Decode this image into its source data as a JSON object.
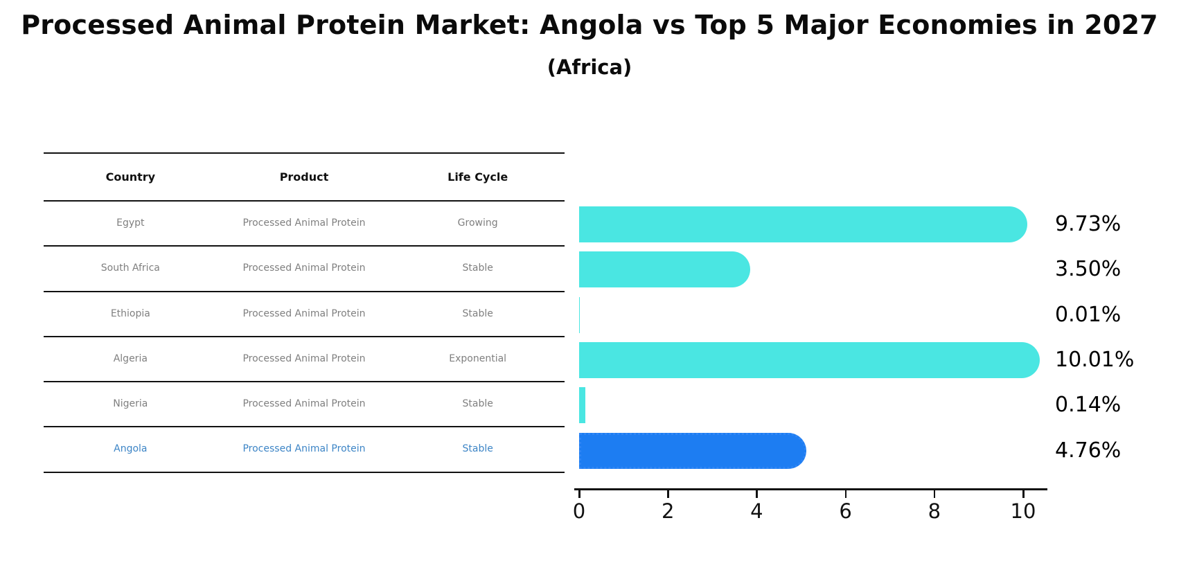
{
  "title": {
    "text": "Processed Animal Protein Market: Angola vs Top 5 Major Economies in 2027",
    "subtitle": "(Africa)"
  },
  "table": {
    "columns": [
      "Country",
      "Product",
      "Life Cycle"
    ],
    "rows": [
      {
        "country": "Egypt",
        "product": "Processed Animal Protein",
        "life_cycle": "Growing"
      },
      {
        "country": "South Africa",
        "product": "Processed Animal Protein",
        "life_cycle": "Stable"
      },
      {
        "country": "Ethiopia",
        "product": "Processed Animal Protein",
        "life_cycle": "Stable"
      },
      {
        "country": "Algeria",
        "product": "Processed Animal Protein",
        "life_cycle": "Exponential"
      },
      {
        "country": "Nigeria",
        "product": "Processed Animal Protein",
        "life_cycle": "Stable"
      },
      {
        "country": "Angola",
        "product": "Processed Animal Protein",
        "life_cycle": "Stable"
      }
    ]
  },
  "chart_data": {
    "type": "bar",
    "orientation": "horizontal",
    "title": "Processed Animal Protein Market: Angola vs Top 5 Major Economies in 2027 (Africa)",
    "categories": [
      "Egypt",
      "South Africa",
      "Ethiopia",
      "Algeria",
      "Nigeria",
      "Angola"
    ],
    "values": [
      9.73,
      3.5,
      0.01,
      10.01,
      0.14,
      4.76
    ],
    "labels": [
      "9.73%",
      "3.50%",
      "0.01%",
      "10.01%",
      "0.14%",
      "4.76%"
    ],
    "x_ticks": [
      0,
      2,
      4,
      6,
      8,
      10
    ],
    "x_tick_labels": [
      "0",
      "2",
      "4",
      "6",
      "8",
      "10"
    ],
    "xlim": [
      0,
      10.55
    ],
    "grid": false,
    "legend": "none",
    "bar_color": "#4AE6E2",
    "highlight_color": "#1D7DF2",
    "highlight_border_color": "#2F86F5",
    "highlight_index": 5,
    "highlight_text_color": "#3d85c6",
    "axis_color": "#111111",
    "row_text_color": "#7f7f7f"
  }
}
